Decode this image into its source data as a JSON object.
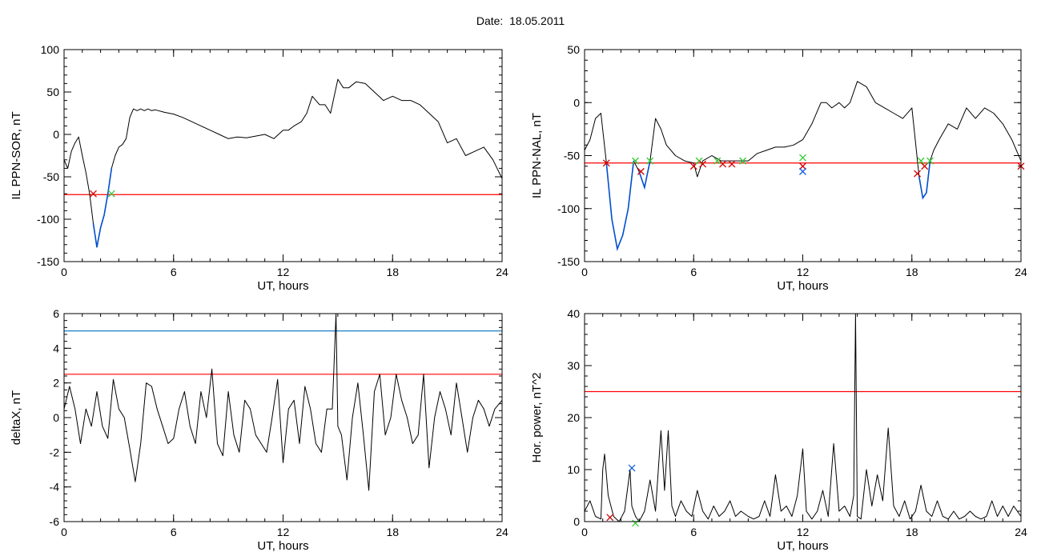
{
  "page": {
    "date_label": "Date:",
    "date_value": "18.05.2011"
  },
  "colors": {
    "trace": "#000000",
    "threshold_red": "#ff0000",
    "threshold_blue": "#0070c0",
    "segment_blue": "#0050d0",
    "marker_red": "#d00000",
    "marker_green": "#33cc33",
    "marker_blue": "#1060e0"
  },
  "chart_data": [
    {
      "type": "line",
      "ylabel": "IL PPN-SOR, nT",
      "xlabel": "UT, hours",
      "xlim": [
        0,
        24
      ],
      "ylim": [
        -150,
        100
      ],
      "xticks": [
        0,
        6,
        12,
        18,
        24
      ],
      "yticks": [
        -150,
        -100,
        -50,
        0,
        50,
        100
      ],
      "thresholds": [
        {
          "value": -71,
          "color": "red"
        }
      ],
      "series": [
        {
          "x": [
            0,
            0.2,
            0.4,
            0.6,
            0.8,
            1.0,
            1.2,
            1.4,
            1.6,
            1.8,
            2.0,
            2.2,
            2.4,
            2.6,
            2.8,
            3.0,
            3.2,
            3.4,
            3.6,
            3.8,
            4.0,
            4.2,
            4.4,
            4.6,
            4.8,
            5.0,
            5.5,
            6.0,
            6.5,
            7.0,
            7.5,
            8.0,
            8.5,
            9.0,
            9.5,
            10.0,
            10.5,
            11.0,
            11.5,
            12.0,
            12.3,
            12.6,
            13.0,
            13.3,
            13.6,
            14.0,
            14.3,
            14.6,
            15.0,
            15.3,
            15.6,
            16.0,
            16.5,
            17.0,
            17.5,
            18.0,
            18.5,
            19.0,
            19.5,
            20.0,
            20.5,
            21.0,
            21.5,
            22.0,
            22.5,
            23.0,
            23.5,
            24.0
          ],
          "y": [
            -30,
            -40,
            -20,
            -10,
            -3,
            -25,
            -45,
            -70,
            -105,
            -133,
            -110,
            -95,
            -70,
            -40,
            -25,
            -15,
            -12,
            -5,
            20,
            30,
            28,
            30,
            28,
            30,
            28,
            29,
            26,
            24,
            20,
            15,
            10,
            5,
            0,
            -5,
            -3,
            -4,
            -2,
            0,
            -5,
            5,
            5,
            10,
            15,
            25,
            45,
            35,
            35,
            25,
            65,
            55,
            55,
            62,
            60,
            50,
            40,
            45,
            40,
            40,
            35,
            25,
            15,
            -10,
            -5,
            -25,
            -20,
            -15,
            -30,
            -52
          ],
          "segments": [
            {
              "from": 1.6,
              "to": 2.6,
              "color": "blue"
            }
          ]
        }
      ],
      "markers": [
        {
          "x": 1.6,
          "y": -70,
          "symbol": "x",
          "color": "red"
        },
        {
          "x": 2.6,
          "y": -70,
          "symbol": "x",
          "color": "green"
        }
      ]
    },
    {
      "type": "line",
      "ylabel": "IL PPN-NAL, nT",
      "xlabel": "UT, hours",
      "xlim": [
        0,
        24
      ],
      "ylim": [
        -150,
        50
      ],
      "xticks": [
        0,
        6,
        12,
        18,
        24
      ],
      "yticks": [
        -150,
        -100,
        -50,
        0,
        50
      ],
      "thresholds": [
        {
          "value": -57,
          "color": "red"
        }
      ],
      "series": [
        {
          "x": [
            0,
            0.3,
            0.6,
            0.9,
            1.2,
            1.5,
            1.8,
            2.1,
            2.4,
            2.7,
            3.0,
            3.3,
            3.6,
            3.9,
            4.2,
            4.5,
            5.0,
            5.5,
            6.0,
            6.2,
            6.5,
            7.0,
            7.5,
            8.0,
            8.5,
            9.0,
            9.5,
            10.0,
            10.5,
            11.0,
            11.5,
            12.0,
            12.5,
            13.0,
            13.3,
            13.6,
            14.0,
            14.3,
            14.6,
            15.0,
            15.5,
            16.0,
            16.5,
            17.0,
            17.5,
            18.0,
            18.4,
            18.6,
            18.8,
            19.0,
            19.2,
            19.5,
            20.0,
            20.5,
            21.0,
            21.5,
            22.0,
            22.5,
            23.0,
            23.5,
            24.0
          ],
          "y": [
            -45,
            -35,
            -15,
            -10,
            -57,
            -110,
            -138,
            -125,
            -100,
            -55,
            -65,
            -80,
            -55,
            -15,
            -25,
            -40,
            -50,
            -55,
            -57,
            -70,
            -55,
            -50,
            -55,
            -55,
            -55,
            -55,
            -48,
            -45,
            -42,
            -42,
            -40,
            -35,
            -20,
            0,
            0,
            -5,
            0,
            -5,
            0,
            20,
            15,
            0,
            -5,
            -10,
            -15,
            -5,
            -70,
            -90,
            -85,
            -55,
            -45,
            -35,
            -20,
            -25,
            -5,
            -15,
            -5,
            -10,
            -20,
            -35,
            -55
          ],
          "segments": [
            {
              "from": 1.2,
              "to": 2.7,
              "color": "blue"
            },
            {
              "from": 2.9,
              "to": 3.6,
              "color": "blue"
            },
            {
              "from": 18.4,
              "to": 19.0,
              "color": "blue"
            }
          ]
        }
      ],
      "markers": [
        {
          "x": 1.2,
          "y": -57,
          "symbol": "x",
          "color": "red"
        },
        {
          "x": 2.8,
          "y": -55,
          "symbol": "x",
          "color": "green"
        },
        {
          "x": 3.1,
          "y": -65,
          "symbol": "x",
          "color": "red"
        },
        {
          "x": 3.6,
          "y": -55,
          "symbol": "x",
          "color": "green"
        },
        {
          "x": 6.0,
          "y": -60,
          "symbol": "x",
          "color": "red"
        },
        {
          "x": 6.3,
          "y": -55,
          "symbol": "x",
          "color": "green"
        },
        {
          "x": 6.5,
          "y": -58,
          "symbol": "x",
          "color": "red"
        },
        {
          "x": 7.3,
          "y": -55,
          "symbol": "x",
          "color": "green"
        },
        {
          "x": 7.6,
          "y": -58,
          "symbol": "x",
          "color": "red"
        },
        {
          "x": 8.1,
          "y": -58,
          "symbol": "x",
          "color": "red"
        },
        {
          "x": 8.7,
          "y": -55,
          "symbol": "x",
          "color": "green"
        },
        {
          "x": 12.0,
          "y": -60,
          "symbol": "x",
          "color": "red"
        },
        {
          "x": 12.0,
          "y": -65,
          "symbol": "x",
          "color": "blue"
        },
        {
          "x": 12.0,
          "y": -52,
          "symbol": "x",
          "color": "green"
        },
        {
          "x": 18.3,
          "y": -67,
          "symbol": "x",
          "color": "red"
        },
        {
          "x": 18.5,
          "y": -55,
          "symbol": "x",
          "color": "green"
        },
        {
          "x": 18.7,
          "y": -60,
          "symbol": "x",
          "color": "red"
        },
        {
          "x": 19.0,
          "y": -55,
          "symbol": "x",
          "color": "green"
        },
        {
          "x": 24.0,
          "y": -60,
          "symbol": "x",
          "color": "red"
        }
      ]
    },
    {
      "type": "line",
      "ylabel": "deltaX, nT",
      "xlabel": "UT, hours",
      "xlim": [
        0,
        24
      ],
      "ylim": [
        -6,
        6
      ],
      "xticks": [
        0,
        6,
        12,
        18,
        24
      ],
      "yticks": [
        -6,
        -4,
        -2,
        0,
        2,
        4,
        6
      ],
      "thresholds": [
        {
          "value": 5,
          "color": "blue"
        },
        {
          "value": 2.5,
          "color": "red"
        }
      ],
      "series": [
        {
          "x": [
            0,
            0.3,
            0.6,
            0.9,
            1.2,
            1.5,
            1.8,
            2.1,
            2.4,
            2.7,
            3.0,
            3.3,
            3.6,
            3.9,
            4.2,
            4.5,
            4.8,
            5.1,
            5.4,
            5.7,
            6.0,
            6.3,
            6.6,
            6.9,
            7.2,
            7.5,
            7.8,
            8.1,
            8.4,
            8.7,
            9.0,
            9.3,
            9.6,
            9.9,
            10.2,
            10.5,
            10.8,
            11.1,
            11.4,
            11.7,
            12.0,
            12.3,
            12.6,
            12.9,
            13.2,
            13.5,
            13.8,
            14.1,
            14.4,
            14.7,
            14.9,
            15.0,
            15.2,
            15.5,
            15.8,
            16.1,
            16.4,
            16.7,
            17.0,
            17.3,
            17.6,
            17.9,
            18.2,
            18.5,
            18.8,
            19.1,
            19.4,
            19.7,
            20.0,
            20.3,
            20.6,
            20.9,
            21.2,
            21.5,
            21.8,
            22.1,
            22.4,
            22.7,
            23.0,
            23.3,
            23.6,
            24.0
          ],
          "y": [
            0.5,
            1.8,
            0.5,
            -1.5,
            0.5,
            -0.5,
            1.5,
            -0.5,
            -1.2,
            2.2,
            0.5,
            0,
            -1.8,
            -3.7,
            -1.5,
            2.0,
            1.8,
            0.5,
            -0.5,
            -1.5,
            -1.2,
            0.5,
            1.5,
            -0.5,
            -1.5,
            1.5,
            0,
            2.8,
            -1.5,
            -2.2,
            1.5,
            -1.0,
            -2.0,
            1.0,
            0.5,
            -1.0,
            -1.5,
            -2.0,
            0,
            2.2,
            -2.6,
            0.5,
            1.0,
            -1.5,
            1.8,
            0.5,
            -1.5,
            -2.0,
            0.5,
            0.5,
            6.0,
            -0.5,
            -1.0,
            -3.6,
            0,
            2.0,
            -1.0,
            -4.2,
            1.5,
            2.5,
            -1.0,
            0,
            2.5,
            1.0,
            0,
            -1.5,
            -1.0,
            2.5,
            -2.9,
            0,
            1.5,
            0.5,
            -1.0,
            2.0,
            0,
            -2.0,
            0,
            1.0,
            0.5,
            -0.5,
            0.5,
            1.0
          ]
        }
      ],
      "markers": []
    },
    {
      "type": "line",
      "ylabel": "Hor. power, nT^2",
      "xlabel": "UT, hours",
      "xlim": [
        0,
        24
      ],
      "ylim": [
        0,
        40
      ],
      "xticks": [
        0,
        6,
        12,
        18,
        24
      ],
      "yticks": [
        0,
        10,
        20,
        30,
        40
      ],
      "thresholds": [
        {
          "value": 25,
          "color": "red"
        }
      ],
      "series": [
        {
          "x": [
            0,
            0.3,
            0.6,
            0.9,
            1.0,
            1.1,
            1.3,
            1.6,
            1.9,
            2.2,
            2.5,
            2.6,
            2.8,
            3.0,
            3.3,
            3.6,
            3.9,
            4.2,
            4.4,
            4.6,
            4.8,
            5.0,
            5.3,
            5.6,
            5.9,
            6.2,
            6.5,
            6.8,
            7.1,
            7.4,
            7.7,
            8.0,
            8.3,
            8.6,
            9.0,
            9.3,
            9.6,
            9.9,
            10.2,
            10.5,
            10.8,
            11.1,
            11.4,
            11.7,
            12.0,
            12.2,
            12.5,
            12.8,
            13.1,
            13.4,
            13.7,
            14.0,
            14.3,
            14.6,
            14.8,
            14.9,
            15.0,
            15.2,
            15.5,
            15.8,
            16.1,
            16.4,
            16.7,
            17.0,
            17.3,
            17.6,
            17.9,
            18.2,
            18.5,
            18.8,
            19.1,
            19.4,
            19.7,
            20.0,
            20.3,
            20.6,
            20.9,
            21.2,
            21.5,
            21.8,
            22.1,
            22.4,
            22.7,
            23.0,
            23.3,
            23.6,
            24.0
          ],
          "y": [
            2,
            4,
            1,
            0.5,
            10,
            13,
            5,
            1,
            0,
            2,
            10,
            3,
            1,
            0,
            2,
            8,
            2,
            17.5,
            6,
            17.5,
            3,
            1,
            4,
            2,
            1,
            6,
            2,
            0.5,
            3,
            1,
            2,
            4,
            1,
            2,
            1,
            0.5,
            1,
            4,
            1,
            9,
            2,
            3,
            1,
            5,
            14,
            2,
            0.5,
            2,
            6,
            1,
            15,
            2,
            3,
            1,
            5,
            40,
            1,
            0.5,
            10,
            3,
            9,
            4,
            18,
            3,
            1,
            4,
            0.5,
            2,
            7,
            2,
            1,
            4,
            1,
            0.5,
            2,
            0.5,
            1,
            2,
            1,
            0.5,
            1,
            4,
            1,
            3,
            1,
            3,
            1
          ]
        }
      ],
      "markers": [
        {
          "x": 1.4,
          "y": 0.8,
          "symbol": "x",
          "color": "red"
        },
        {
          "x": 2.6,
          "y": 10.3,
          "symbol": "x",
          "color": "blue"
        },
        {
          "x": 2.8,
          "y": -0.3,
          "symbol": "x",
          "color": "green"
        }
      ]
    }
  ]
}
